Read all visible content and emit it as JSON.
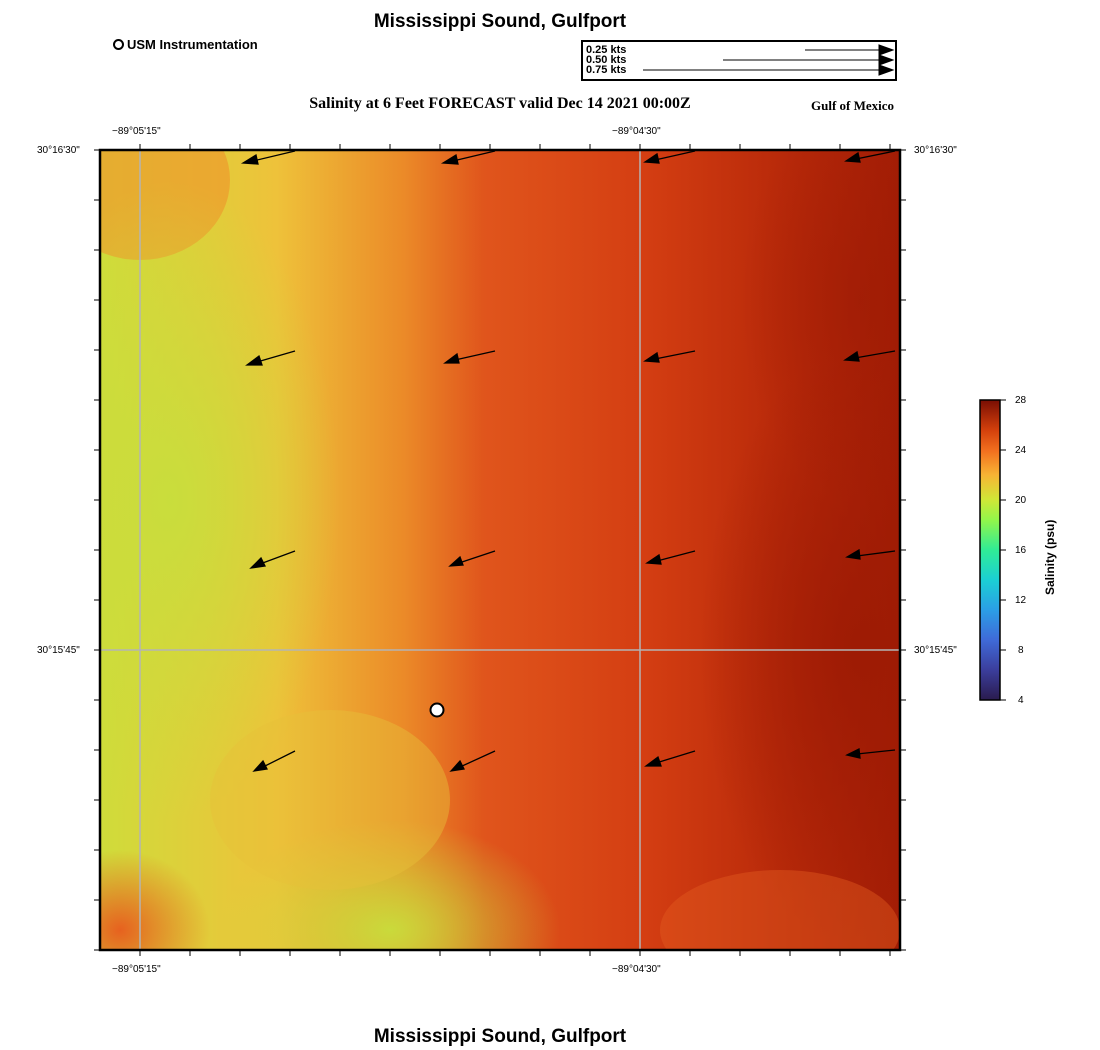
{
  "header": {
    "title": "Mississippi Sound, Gulfport",
    "subtitle": "Salinity at 6 Feet FORECAST valid Dec 14 2021 00:00Z",
    "region": "Gulf of Mexico"
  },
  "footer": {
    "title": "Mississippi Sound, Gulfport"
  },
  "legend": {
    "station_label": "USM Instrumentation",
    "vector_scale": [
      "0.25 kts",
      "0.50 kts",
      "0.75 kts"
    ]
  },
  "map": {
    "lon_ticks": [
      "−89°05'15\"",
      "−89°04'30\""
    ],
    "lat_ticks": [
      "30°16'30\"",
      "30°15'45\""
    ],
    "station": {
      "lat": "30°15'41\"",
      "lon": "−89°04'45\""
    },
    "colors": {
      "low": "#c8dc3c",
      "mid": "#e0481a",
      "high": "#a01c05",
      "grid": "#b4b4b4"
    }
  },
  "colorbar": {
    "title": "Salinity (psu)",
    "ticks": [
      "28",
      "24",
      "20",
      "16",
      "12",
      "8",
      "4"
    ],
    "min": 4,
    "max": 28
  }
}
